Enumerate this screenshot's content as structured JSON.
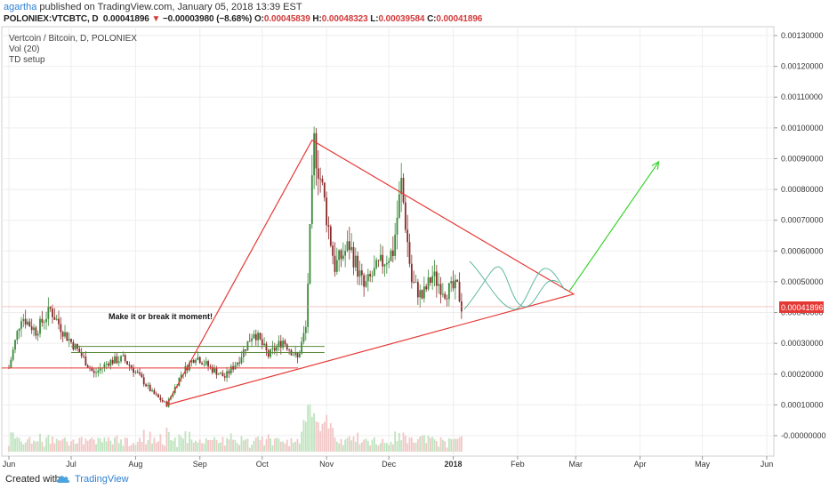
{
  "header": {
    "author": "agartha",
    "published": "published on TradingView.com, January 05, 2018 13:39 EST",
    "symbol": "POLONIEX:VTCBTC, D",
    "last": "0.00041896",
    "change_arrow": "▼",
    "change": "−0.00003980 (−8.68%)",
    "o_label": "O:",
    "o": "0.00045839",
    "h_label": "H:",
    "h": "0.00048323",
    "l_label": "L:",
    "l": "0.00039584",
    "c_label": "C:",
    "c": "0.00041896"
  },
  "legend": {
    "title": "Vertcoin / Bitcoin, D, POLONIEX",
    "vol": "Vol (20)",
    "td": "TD setup"
  },
  "annotation": "Make it or break it moment!",
  "price_tag": "0.00041896",
  "footer": {
    "created": "Created with",
    "brand": "TradingView"
  },
  "colors": {
    "up": "#3a8a3a",
    "down": "#8a2a2a",
    "triangle": "#e53935",
    "arrow": "#39d42b",
    "curve": "#5fb8a0",
    "support": "#5a8a3a",
    "price_tag_bg": "#e53935"
  },
  "chart_data": {
    "type": "candlestick",
    "title": "Vertcoin / Bitcoin, D, POLONIEX",
    "x_ticks": [
      "Jun",
      "Jul",
      "Aug",
      "Sep",
      "Oct",
      "Nov",
      "Dec",
      "2018",
      "Feb",
      "Mar",
      "Apr",
      "May",
      "Jun"
    ],
    "y_ticks": [
      "0.00130000",
      "0.00120000",
      "0.00110000",
      "0.00100000",
      "0.00090000",
      "0.00080000",
      "0.00070000",
      "0.00060000",
      "0.00050000",
      "0.00040000",
      "0.00030000",
      "0.00020000",
      "0.00010000",
      "-0.00000000"
    ],
    "ylim": [
      -3e-05,
      0.00133
    ],
    "price_key_points": [
      [
        "2017-06-01",
        0.00022
      ],
      [
        "2017-06-07",
        0.00039
      ],
      [
        "2017-06-14",
        0.00034
      ],
      [
        "2017-06-21",
        0.00041
      ],
      [
        "2017-06-28",
        0.00033
      ],
      [
        "2017-07-05",
        0.00027
      ],
      [
        "2017-07-12",
        0.0002
      ],
      [
        "2017-07-19",
        0.00024
      ],
      [
        "2017-07-26",
        0.00025
      ],
      [
        "2017-08-02",
        0.0002
      ],
      [
        "2017-08-09",
        0.00014
      ],
      [
        "2017-08-16",
        0.0001
      ],
      [
        "2017-08-23",
        0.0002
      ],
      [
        "2017-08-30",
        0.00026
      ],
      [
        "2017-09-06",
        0.00022
      ],
      [
        "2017-09-13",
        0.00019
      ],
      [
        "2017-09-20",
        0.00025
      ],
      [
        "2017-09-27",
        0.00034
      ],
      [
        "2017-10-04",
        0.00026
      ],
      [
        "2017-10-11",
        0.00031
      ],
      [
        "2017-10-18",
        0.00025
      ],
      [
        "2017-10-22",
        0.00035
      ],
      [
        "2017-10-26",
        0.00095
      ],
      [
        "2017-10-30",
        0.0008
      ],
      [
        "2017-11-05",
        0.00055
      ],
      [
        "2017-11-12",
        0.00062
      ],
      [
        "2017-11-19",
        0.00048
      ],
      [
        "2017-11-26",
        0.00055
      ],
      [
        "2017-12-03",
        0.0006
      ],
      [
        "2017-12-07",
        0.00082
      ],
      [
        "2017-12-12",
        0.0005
      ],
      [
        "2017-12-17",
        0.00045
      ],
      [
        "2017-12-22",
        0.00052
      ],
      [
        "2017-12-28",
        0.00047
      ],
      [
        "2018-01-03",
        0.00048
      ],
      [
        "2018-01-05",
        0.00042
      ]
    ],
    "drawings": {
      "triangle": [
        [
          "2017-08-16",
          0.0001
        ],
        [
          "2017-10-25",
          0.00096
        ],
        [
          "2018-02-28",
          0.00046
        ]
      ],
      "support_lines": [
        {
          "from": [
            "2017-07-01",
            0.00029
          ],
          "to": [
            "2017-10-31",
            0.00029
          ]
        },
        {
          "from": [
            "2017-07-01",
            0.00027
          ],
          "to": [
            "2017-10-31",
            0.00027
          ]
        }
      ],
      "horizontal_line": 0.00022,
      "price_line": 0.00041896,
      "arrow": {
        "from": [
          "2018-02-26",
          0.00047
        ],
        "to": [
          "2018-04-10",
          0.00089
        ]
      }
    }
  }
}
